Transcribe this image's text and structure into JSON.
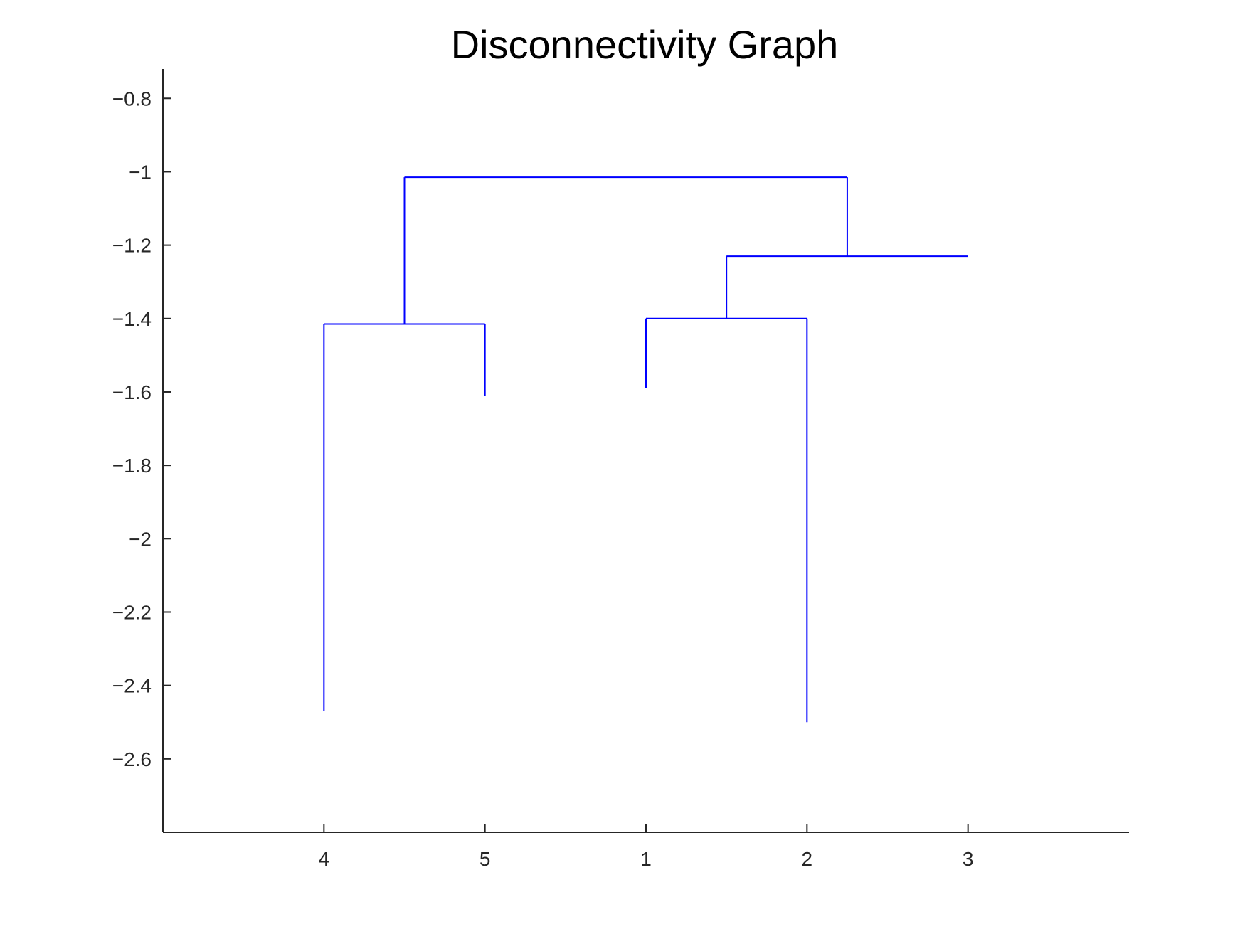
{
  "chart_data": {
    "type": "dendrogram",
    "title": "Disconnectivity Graph",
    "xlabel": "",
    "ylabel": "",
    "x_range": [
      0,
      6
    ],
    "ylim": [
      -2.8,
      -0.72
    ],
    "grid": false,
    "leaves": [
      {
        "label": "4",
        "x": 1,
        "energy": -2.47
      },
      {
        "label": "5",
        "x": 2,
        "energy": -1.61
      },
      {
        "label": "1",
        "x": 3,
        "energy": -1.59
      },
      {
        "label": "2",
        "x": 4,
        "energy": -2.5
      },
      {
        "label": "3",
        "x": 5,
        "energy": -1.23
      }
    ],
    "merges": [
      {
        "children": [
          "4",
          "5"
        ],
        "energy": -1.415,
        "x": 1.5
      },
      {
        "children": [
          "1",
          "2"
        ],
        "energy": -1.4,
        "x": 3.5
      },
      {
        "children": [
          "1-2",
          "3"
        ],
        "energy": -1.23,
        "x": 4.25
      },
      {
        "children": [
          "4-5",
          "1-2-3"
        ],
        "energy": -1.015,
        "x": 2.875
      }
    ],
    "branches": [
      {
        "x0": 1,
        "x1": 2,
        "y": -1.415,
        "drops": [
          {
            "x": 1,
            "y": -2.47
          },
          {
            "x": 2,
            "y": -1.61
          }
        ],
        "up": {
          "x": 1.5,
          "y": -1.015
        }
      },
      {
        "x0": 3,
        "x1": 4,
        "y": -1.4,
        "drops": [
          {
            "x": 3,
            "y": -1.59
          },
          {
            "x": 4,
            "y": -2.5
          }
        ],
        "up": {
          "x": 3.5,
          "y": -1.23
        }
      },
      {
        "x0": 3.5,
        "x1": 5,
        "y": -1.23,
        "drops": [],
        "up": {
          "x": 4.25,
          "y": -1.015
        }
      },
      {
        "x0": 1.5,
        "x1": 4.25,
        "y": -1.015,
        "drops": [],
        "up": null
      }
    ],
    "y_ticks": [
      -0.8,
      -1,
      -1.2,
      -1.4,
      -1.6,
      -1.8,
      -2,
      -2.2,
      -2.4,
      -2.6
    ],
    "y_tick_labels": [
      "−0.8",
      "−1",
      "−1.2",
      "−1.4",
      "−1.6",
      "−1.8",
      "−2",
      "−2.2",
      "−2.4",
      "−2.6"
    ],
    "x_tick_labels": [
      "4",
      "5",
      "1",
      "2",
      "3"
    ],
    "colors": {
      "branch": "#0000ff",
      "axis": "#262626"
    }
  }
}
